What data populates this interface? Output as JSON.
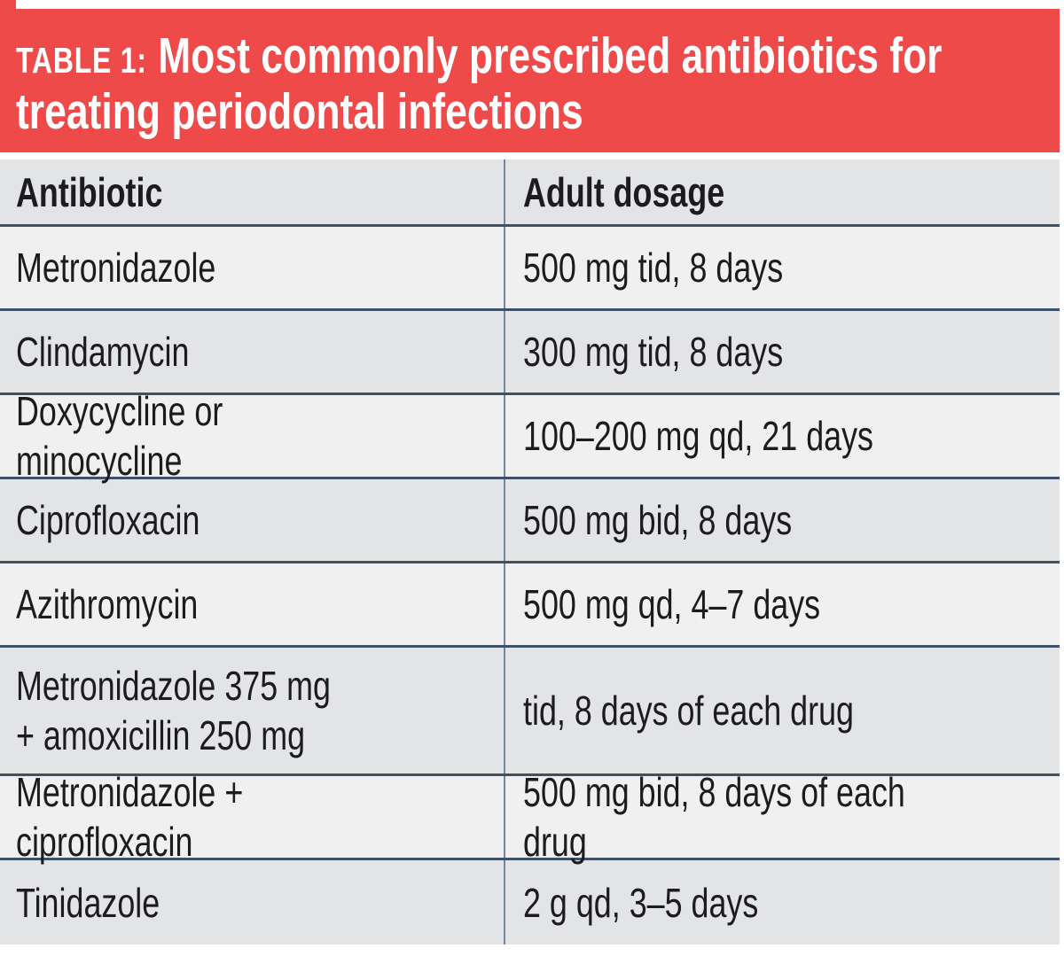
{
  "banner": {
    "label": "TABLE 1:",
    "title": "Most commonly prescribed antibiotics for\ntreating periodontal infections"
  },
  "table": {
    "columns": [
      "Antibiotic",
      "Adult dosage"
    ],
    "rows": [
      {
        "antibiotic": "Metronidazole",
        "dosage": "500 mg tid, 8 days",
        "shade": "light"
      },
      {
        "antibiotic": "Clindamycin",
        "dosage": "300 mg tid, 8 days",
        "shade": "dark"
      },
      {
        "antibiotic": "Doxycycline or minocycline",
        "dosage": "100–200 mg qd, 21 days",
        "shade": "light"
      },
      {
        "antibiotic": "Ciprofloxacin",
        "dosage": "500 mg bid, 8 days",
        "shade": "dark"
      },
      {
        "antibiotic": "Azithromycin",
        "dosage": "500 mg qd, 4–7 days",
        "shade": "light"
      },
      {
        "antibiotic": "Metronidazole 375 mg\n+ amoxicillin 250 mg",
        "dosage": "tid, 8 days of each drug",
        "shade": "dark",
        "tall": true
      },
      {
        "antibiotic": "Metronidazole + ciprofloxacin",
        "dosage": "500 mg bid, 8 days of each drug",
        "shade": "light"
      },
      {
        "antibiotic": "Tinidazole",
        "dosage": "2 g qd, 3–5 days",
        "shade": "dark",
        "last": true
      }
    ]
  },
  "colors": {
    "banner_bg": "#ee4a4a",
    "banner_fg": "#ffffff",
    "row_light": "#f0f0f1",
    "row_dark": "#e3e4e6",
    "line_horizontal": "#3f5166",
    "line_vertical": "#76879d",
    "text": "#1c1c1e"
  },
  "chart_data": {
    "type": "table",
    "title": "TABLE 1: Most commonly prescribed antibiotics for treating periodontal infections",
    "columns": [
      "Antibiotic",
      "Adult dosage"
    ],
    "rows": [
      [
        "Metronidazole",
        "500 mg tid, 8 days"
      ],
      [
        "Clindamycin",
        "300 mg tid, 8 days"
      ],
      [
        "Doxycycline or minocycline",
        "100–200 mg qd, 21 days"
      ],
      [
        "Ciprofloxacin",
        "500 mg bid, 8 days"
      ],
      [
        "Azithromycin",
        "500 mg qd, 4–7 days"
      ],
      [
        "Metronidazole 375 mg + amoxicillin 250 mg",
        "tid, 8 days of each drug"
      ],
      [
        "Metronidazole + ciprofloxacin",
        "500 mg bid, 8 days of each drug"
      ],
      [
        "Tinidazole",
        "2 g qd, 3–5 days"
      ]
    ],
    "layout": {
      "header_fill": "#e3e4e6",
      "alternating_row_fills": [
        "#f0f0f1",
        "#e3e4e6"
      ],
      "banner_fill": "#ee4a4a",
      "grid": "horizontal-rules-and-single-column-divider"
    }
  }
}
